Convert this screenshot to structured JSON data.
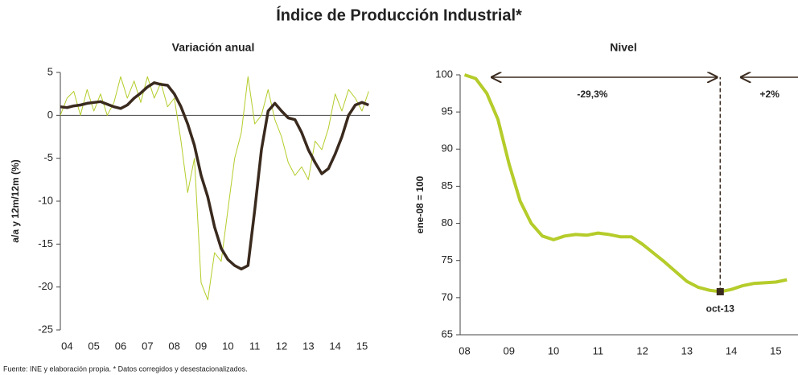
{
  "title": "Índice de Producción Industrial*",
  "footnote": "Fuente: INE y elaboración propia. * Datos corregidos y desestacionalizados.",
  "chart_data": [
    {
      "type": "line",
      "title": "Variación anual",
      "ylabel": "a/a y 12m/12m  (%)",
      "x": [
        2003.75,
        2004,
        2004.25,
        2004.5,
        2004.75,
        2005,
        2005.25,
        2005.5,
        2005.75,
        2006,
        2006.25,
        2006.5,
        2006.75,
        2007,
        2007.25,
        2007.5,
        2007.75,
        2008,
        2008.25,
        2008.5,
        2008.75,
        2009,
        2009.25,
        2009.5,
        2009.75,
        2010,
        2010.25,
        2010.5,
        2010.75,
        2011,
        2011.25,
        2011.5,
        2011.75,
        2012,
        2012.25,
        2012.5,
        2012.75,
        2013,
        2013.25,
        2013.5,
        2013.75,
        2014,
        2014.25,
        2014.5,
        2014.75,
        2015,
        2015.25
      ],
      "series": [
        {
          "color": "#b5cc2a",
          "width": 1,
          "values": [
            0,
            2,
            2.8,
            0,
            3,
            0.5,
            2.5,
            0,
            1.5,
            4.5,
            2,
            4,
            1.5,
            4.5,
            2,
            3.8,
            1,
            2,
            -3,
            -9,
            -5,
            -19.5,
            -21.5,
            -16,
            -17,
            -11,
            -5,
            -2,
            4.5,
            -1,
            0,
            3,
            -0.5,
            -2.5,
            -5.5,
            -7,
            -6,
            -7.5,
            -3,
            -4,
            -1.5,
            2.5,
            0.5,
            3,
            2,
            0.5,
            2.8
          ]
        },
        {
          "color": "#3a2a1e",
          "width": 3.5,
          "values": [
            1.0,
            0.9,
            1.1,
            1.2,
            1.4,
            1.5,
            1.6,
            1.3,
            1.0,
            0.8,
            1.2,
            2.0,
            2.6,
            3.3,
            3.8,
            3.6,
            3.5,
            2.5,
            1.0,
            -1.0,
            -3.5,
            -7,
            -9.5,
            -13,
            -15.5,
            -16.8,
            -17.5,
            -17.9,
            -17.5,
            -11,
            -4,
            0.5,
            1.4,
            0.5,
            -0.3,
            -0.5,
            -2,
            -4,
            -5.5,
            -6.8,
            -6.2,
            -4.5,
            -2.5,
            0,
            1.2,
            1.5,
            1.2
          ]
        }
      ],
      "xlim": [
        2003.75,
        2015.3
      ],
      "xticks": [
        {
          "value": 2004,
          "label": "04"
        },
        {
          "value": 2005,
          "label": "05"
        },
        {
          "value": 2006,
          "label": "06"
        },
        {
          "value": 2007,
          "label": "07"
        },
        {
          "value": 2008,
          "label": "08"
        },
        {
          "value": 2009,
          "label": "09"
        },
        {
          "value": 2010,
          "label": "10"
        },
        {
          "value": 2011,
          "label": "11"
        },
        {
          "value": 2012,
          "label": "12"
        },
        {
          "value": 2013,
          "label": "13"
        },
        {
          "value": 2014,
          "label": "14"
        },
        {
          "value": 2015,
          "label": "15"
        }
      ],
      "ylim": [
        -25,
        5
      ],
      "yticks": [
        -25,
        -20,
        -15,
        -10,
        -5,
        0,
        5
      ]
    },
    {
      "type": "line",
      "title": "Nivel",
      "ylabel": "ene-08 = 100",
      "x": [
        2008,
        2008.25,
        2008.5,
        2008.75,
        2009,
        2009.25,
        2009.5,
        2009.75,
        2010,
        2010.25,
        2010.5,
        2010.75,
        2011,
        2011.25,
        2011.5,
        2011.75,
        2012,
        2012.25,
        2012.5,
        2012.75,
        2013,
        2013.25,
        2013.5,
        2013.75,
        2014,
        2014.25,
        2014.5,
        2014.75,
        2015,
        2015.25
      ],
      "series": [
        {
          "color": "#b5cc2a",
          "width": 4,
          "values": [
            100,
            99.5,
            97.5,
            94,
            88,
            83,
            80,
            78.3,
            77.8,
            78.3,
            78.5,
            78.4,
            78.7,
            78.5,
            78.2,
            78.2,
            77.2,
            76,
            74.8,
            73.5,
            72.2,
            71.4,
            71.0,
            70.8,
            71.1,
            71.6,
            71.9,
            72.0,
            72.1,
            72.4
          ]
        }
      ],
      "xlim": [
        2007.9,
        2015.5
      ],
      "xticks": [
        {
          "value": 2008,
          "label": "08"
        },
        {
          "value": 2009,
          "label": "09"
        },
        {
          "value": 2010,
          "label": "10"
        },
        {
          "value": 2011,
          "label": "11"
        },
        {
          "value": 2012,
          "label": "12"
        },
        {
          "value": 2013,
          "label": "13"
        },
        {
          "value": 2014,
          "label": "14"
        },
        {
          "value": 2015,
          "label": "15"
        }
      ],
      "ylim": [
        65,
        100
      ],
      "yticks": [
        65,
        70,
        75,
        80,
        85,
        90,
        95,
        100
      ],
      "annotations": [
        {
          "text": "-29,3%",
          "color": "#e8202a"
        },
        {
          "text": "+2%",
          "color": "#7fc4e0"
        },
        {
          "text": "oct-13",
          "x": 2013.75,
          "y": 70.8
        }
      ]
    }
  ]
}
